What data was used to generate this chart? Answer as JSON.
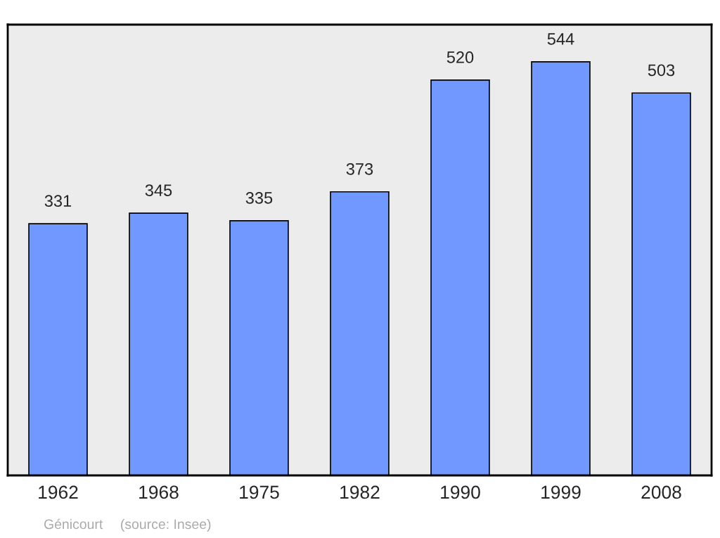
{
  "chart_data": {
    "type": "bar",
    "categories": [
      "1962",
      "1968",
      "1975",
      "1982",
      "1990",
      "1999",
      "2008"
    ],
    "values": [
      331,
      345,
      335,
      373,
      520,
      544,
      503
    ],
    "color": "#7198ff",
    "data_labels": true,
    "grid": false,
    "annotations": [
      "Génicourt",
      "(source: Insee)"
    ]
  }
}
